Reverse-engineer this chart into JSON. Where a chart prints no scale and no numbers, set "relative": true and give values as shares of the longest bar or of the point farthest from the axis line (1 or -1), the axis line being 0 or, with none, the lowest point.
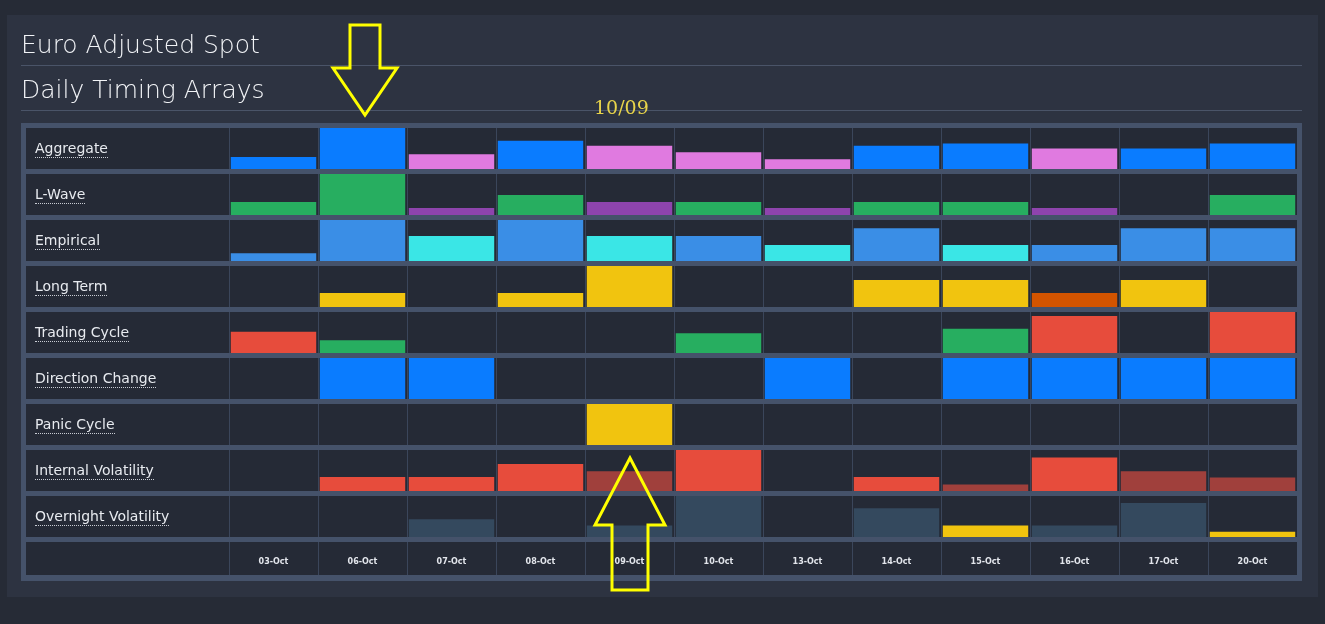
{
  "chart_data": [
    {
      "type": "bar",
      "title": "Euro Adjusted Spot",
      "subtitle": "Daily Timing Arrays",
      "annotations": [
        "10/09"
      ],
      "ylabel": "Aggregate",
      "relative": true,
      "grid": "x",
      "tick_labels": false,
      "categories": [
        null,
        null,
        null,
        null,
        null,
        null,
        null,
        null,
        null,
        null,
        null,
        null
      ],
      "values": [
        0.29,
        1,
        0.36,
        0.69,
        0.57,
        0.41,
        0.24,
        0.57,
        0.62,
        0.5,
        0.5,
        0.62
      ],
      "colors": [
        "#0a7cff",
        "#0a7cff",
        "#e07ae0",
        "#0a7cff",
        "#e07ae0",
        "#e07ae0",
        "#e07ae0",
        "#0a7cff",
        "#0a7cff",
        "#e07ae0",
        "#0a7cff",
        "#0a7cff"
      ]
    },
    {
      "type": "bar",
      "ylabel": "L-Wave",
      "relative": true,
      "grid": "x",
      "tick_labels": false,
      "categories": [
        null,
        null,
        null,
        null,
        null,
        null,
        null,
        null,
        null,
        null,
        null,
        null
      ],
      "values": [
        0.32,
        1,
        0.17,
        0.49,
        0.32,
        0.32,
        0.17,
        0.32,
        0.32,
        0.17,
        null,
        0.49
      ],
      "colors": [
        "#27ae60",
        "#27ae60",
        "#8e44ad",
        "#27ae60",
        "#8e44ad",
        "#27ae60",
        "#8e44ad",
        "#27ae60",
        "#27ae60",
        "#8e44ad",
        null,
        "#27ae60"
      ]
    },
    {
      "type": "bar",
      "ylabel": "Empirical",
      "relative": true,
      "grid": "x",
      "tick_labels": false,
      "categories": [
        null,
        null,
        null,
        null,
        null,
        null,
        null,
        null,
        null,
        null,
        null,
        null
      ],
      "values": [
        0.19,
        1,
        0.61,
        1,
        0.61,
        0.61,
        0.39,
        0.8,
        0.39,
        0.39,
        0.8,
        0.8
      ],
      "colors": [
        "#3a8ee6",
        "#3a8ee6",
        "#3ae6e6",
        "#3a8ee6",
        "#3ae6e6",
        "#3a8ee6",
        "#3ae6e6",
        "#3a8ee6",
        "#3ae6e6",
        "#3a8ee6",
        "#3a8ee6",
        "#3a8ee6"
      ]
    },
    {
      "type": "bar",
      "ylabel": "Long Term",
      "relative": true,
      "grid": "x",
      "tick_labels": false,
      "categories": [
        null,
        null,
        null,
        null,
        null,
        null,
        null,
        null,
        null,
        null,
        null,
        null
      ],
      "values": [
        null,
        0.34,
        null,
        0.34,
        1,
        null,
        null,
        0.66,
        0.66,
        0.34,
        0.66,
        null
      ],
      "colors": [
        null,
        "#f1c40f",
        null,
        "#f1c40f",
        "#f1c40f",
        null,
        null,
        "#f1c40f",
        "#f1c40f",
        "#d35400",
        "#f1c40f",
        null
      ]
    },
    {
      "type": "bar",
      "ylabel": "Trading Cycle",
      "relative": true,
      "grid": "x",
      "tick_labels": false,
      "categories": [
        null,
        null,
        null,
        null,
        null,
        null,
        null,
        null,
        null,
        null,
        null,
        null
      ],
      "values": [
        0.52,
        0.31,
        null,
        null,
        null,
        0.48,
        null,
        null,
        0.59,
        0.9,
        null,
        1
      ],
      "colors": [
        "#e74c3c",
        "#27ae60",
        null,
        null,
        null,
        "#27ae60",
        null,
        null,
        "#27ae60",
        "#e74c3c",
        null,
        "#e74c3c"
      ]
    },
    {
      "type": "bar",
      "ylabel": "Direction Change",
      "relative": true,
      "grid": "x",
      "tick_labels": false,
      "categories": [
        null,
        null,
        null,
        null,
        null,
        null,
        null,
        null,
        null,
        null,
        null,
        null
      ],
      "values": [
        null,
        1,
        1,
        null,
        null,
        null,
        1,
        null,
        1,
        1,
        1,
        1
      ],
      "colors": [
        null,
        "#0a7cff",
        "#0a7cff",
        null,
        null,
        null,
        "#0a7cff",
        null,
        "#0a7cff",
        "#0a7cff",
        "#0a7cff",
        "#0a7cff"
      ]
    },
    {
      "type": "bar",
      "ylabel": "Panic Cycle",
      "relative": true,
      "grid": "x",
      "tick_labels": false,
      "categories": [
        null,
        null,
        null,
        null,
        null,
        null,
        null,
        null,
        null,
        null,
        null,
        null
      ],
      "values": [
        null,
        null,
        null,
        null,
        1,
        null,
        null,
        null,
        null,
        null,
        null,
        null
      ],
      "colors": [
        null,
        null,
        null,
        null,
        "#f1c40f",
        null,
        null,
        null,
        null,
        null,
        null,
        null
      ]
    },
    {
      "type": "bar",
      "ylabel": "Internal Volatility",
      "relative": true,
      "grid": "x",
      "tick_labels": false,
      "categories": [
        null,
        null,
        null,
        null,
        null,
        null,
        null,
        null,
        null,
        null,
        null,
        null
      ],
      "values": [
        null,
        0.34,
        0.34,
        0.66,
        0.48,
        1,
        null,
        0.34,
        0.16,
        0.82,
        0.48,
        0.33
      ],
      "colors": [
        null,
        "#e74c3c",
        "#e74c3c",
        "#e74c3c",
        "#a0403c",
        "#e74c3c",
        null,
        "#e74c3c",
        "#a0403c",
        "#e74c3c",
        "#a0403c",
        "#a0403c"
      ]
    },
    {
      "type": "bar",
      "ylabel": "Overnight Volatility",
      "relative": true,
      "grid": "x",
      "tick_labels": "x",
      "categories": [
        "03-Oct",
        "06-Oct",
        "07-Oct",
        "08-Oct",
        "09-Oct",
        "10-Oct",
        "13-Oct",
        "14-Oct",
        "15-Oct",
        "16-Oct",
        "17-Oct",
        "20-Oct"
      ],
      "values": [
        null,
        null,
        0.43,
        null,
        0.28,
        1,
        null,
        0.7,
        0.28,
        0.28,
        0.83,
        0.13
      ],
      "colors": [
        null,
        null,
        "#34495e",
        null,
        "#34495e",
        "#34495e",
        null,
        "#34495e",
        "#f1c40f",
        "#34495e",
        "#34495e",
        "#f1c40f"
      ]
    }
  ]
}
